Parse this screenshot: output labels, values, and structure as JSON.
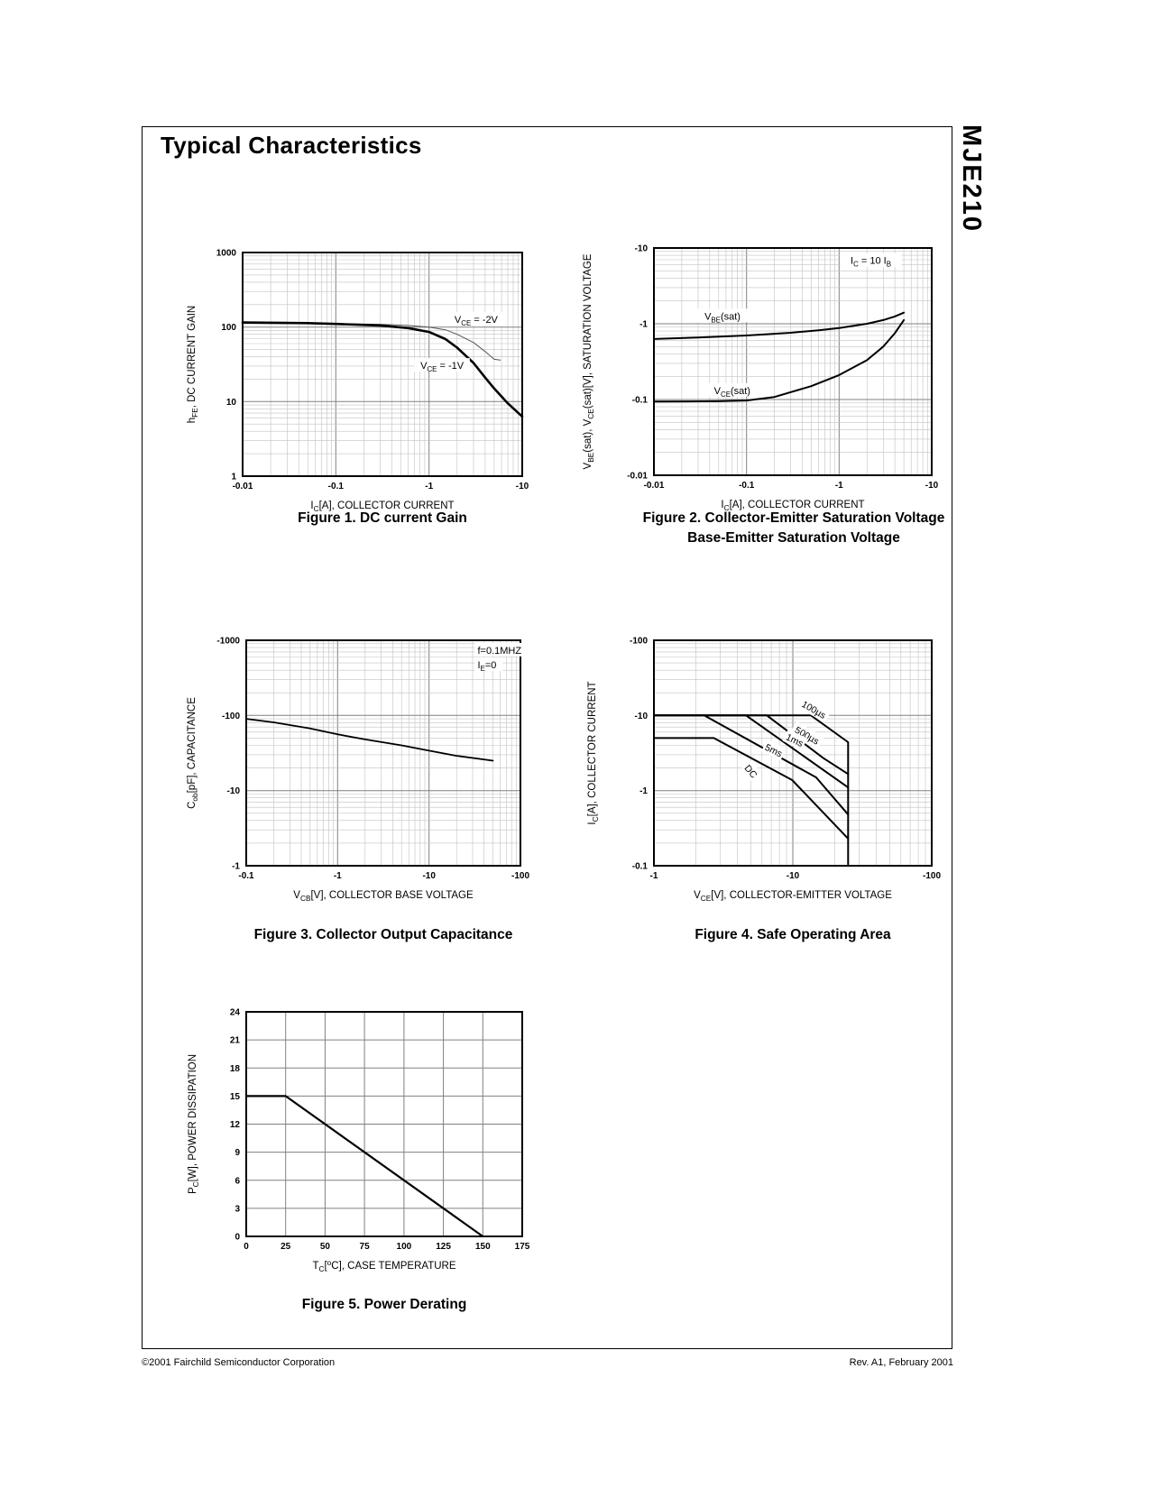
{
  "page": {
    "title": "Typical Characteristics",
    "part_number": "MJE210",
    "footer_left": "©2001 Fairchild Semiconductor Corporation",
    "footer_right": "Rev. A1, February 2001"
  },
  "chart_data": [
    {
      "type": "line",
      "caption": "Figure 1. DC current Gain",
      "xlabel": "I~C~[A], COLLECTOR CURRENT",
      "ylabel": "h~FE~, DC CURRENT GAIN",
      "x_scale": "log",
      "y_scale": "log",
      "x_range": [
        -0.01,
        -10
      ],
      "y_range": [
        1000,
        1
      ],
      "x_ticks": [
        {
          "v": -0.01,
          "label": "-0.01"
        },
        {
          "v": -0.1,
          "label": "-0.1"
        },
        {
          "v": -1,
          "label": "-1"
        },
        {
          "v": -10,
          "label": "-10"
        }
      ],
      "y_ticks": [
        {
          "v": 1000,
          "label": "1000"
        },
        {
          "v": 100,
          "label": "100"
        },
        {
          "v": 10,
          "label": "10"
        },
        {
          "v": 1,
          "label": "1"
        }
      ],
      "series": [
        {
          "name": "VCE = -2V",
          "width": 1,
          "color": "#555",
          "points": [
            [
              -0.01,
              112
            ],
            [
              -0.05,
              111
            ],
            [
              -0.1,
              111
            ],
            [
              -0.3,
              109
            ],
            [
              -0.6,
              105
            ],
            [
              -1,
              100
            ],
            [
              -1.5,
              92
            ],
            [
              -2,
              80
            ],
            [
              -3,
              62
            ],
            [
              -4,
              47
            ],
            [
              -5,
              37
            ],
            [
              -5.8,
              36
            ]
          ]
        },
        {
          "name": "VCE = -1V",
          "width": 2.6,
          "color": "#000",
          "points": [
            [
              -0.01,
              115
            ],
            [
              -0.05,
              113
            ],
            [
              -0.1,
              110
            ],
            [
              -0.3,
              105
            ],
            [
              -0.6,
              97
            ],
            [
              -1,
              86
            ],
            [
              -1.5,
              69
            ],
            [
              -2,
              53
            ],
            [
              -3,
              33
            ],
            [
              -4,
              21
            ],
            [
              -5,
              15
            ],
            [
              -7,
              9.5
            ],
            [
              -10,
              6.3
            ]
          ]
        }
      ],
      "annotations": [
        {
          "text": "V~CE~ = -2V",
          "x": -3.2,
          "y": 120
        },
        {
          "text": "V~CE~ = -1V",
          "x": -1.38,
          "y": 29
        }
      ]
    },
    {
      "type": "line",
      "caption": "Figure 2. Collector-Emitter Saturation Voltage",
      "caption2": "Base-Emitter Saturation Voltage",
      "xlabel": "I~C~[A], COLLECTOR CURRENT",
      "ylabel": "V~BE~(sat), V~CE~(sat)[V], SATURATION VOLTAGE",
      "x_scale": "log",
      "y_scale": "log",
      "x_range": [
        -0.01,
        -10
      ],
      "y_range": [
        -10,
        -0.01
      ],
      "x_ticks": [
        {
          "v": -0.01,
          "label": "-0.01"
        },
        {
          "v": -0.1,
          "label": "-0.1"
        },
        {
          "v": -1,
          "label": "-1"
        },
        {
          "v": -10,
          "label": "-10"
        }
      ],
      "y_ticks": [
        {
          "v": -10,
          "label": "-10"
        },
        {
          "v": -1,
          "label": "-1"
        },
        {
          "v": -0.1,
          "label": "-0.1"
        },
        {
          "v": -0.01,
          "label": "-0.01"
        }
      ],
      "series": [
        {
          "name": "VBE(sat)",
          "width": 2,
          "color": "#000",
          "points": [
            [
              -0.01,
              -0.63
            ],
            [
              -0.03,
              -0.66
            ],
            [
              -0.1,
              -0.7
            ],
            [
              -0.3,
              -0.76
            ],
            [
              -0.6,
              -0.82
            ],
            [
              -1,
              -0.88
            ],
            [
              -2,
              -1.0
            ],
            [
              -3,
              -1.12
            ],
            [
              -4,
              -1.25
            ],
            [
              -5,
              -1.4
            ]
          ]
        },
        {
          "name": "VCE(sat)",
          "width": 2,
          "color": "#000",
          "points": [
            [
              -0.01,
              -0.094
            ],
            [
              -0.05,
              -0.095
            ],
            [
              -0.1,
              -0.097
            ],
            [
              -0.2,
              -0.108
            ],
            [
              -0.5,
              -0.15
            ],
            [
              -1,
              -0.21
            ],
            [
              -2,
              -0.33
            ],
            [
              -3,
              -0.5
            ],
            [
              -4,
              -0.75
            ],
            [
              -5,
              -1.12
            ]
          ]
        }
      ],
      "annotations": [
        {
          "text": "I~C~ = 10 I~B~",
          "x": -2.2,
          "y": -6.5
        },
        {
          "text": "V~BE~(sat)",
          "x": -0.055,
          "y": -1.2
        },
        {
          "text": "V~CE~(sat)",
          "x": -0.07,
          "y": -0.125
        }
      ]
    },
    {
      "type": "line",
      "caption": "Figure 3. Collector Output Capacitance",
      "xlabel": "V~CB~[V], COLLECTOR BASE VOLTAGE",
      "ylabel": "C~ob~[pF], CAPACITANCE",
      "x_scale": "log",
      "y_scale": "log",
      "x_range": [
        -0.1,
        -100
      ],
      "y_range": [
        -1000,
        -1
      ],
      "x_ticks": [
        {
          "v": -0.1,
          "label": "-0.1"
        },
        {
          "v": -1,
          "label": "-1"
        },
        {
          "v": -10,
          "label": "-10"
        },
        {
          "v": -100,
          "label": "-100"
        }
      ],
      "y_ticks": [
        {
          "v": -1000,
          "label": "-1000"
        },
        {
          "v": -100,
          "label": "-100"
        },
        {
          "v": -10,
          "label": "-10"
        },
        {
          "v": -1,
          "label": "-1"
        }
      ],
      "series": [
        {
          "name": "Cob",
          "width": 1.8,
          "color": "#000",
          "points": [
            [
              -0.1,
              -90
            ],
            [
              -0.2,
              -81
            ],
            [
              -0.5,
              -67
            ],
            [
              -1,
              -56
            ],
            [
              -2,
              -48
            ],
            [
              -5,
              -40
            ],
            [
              -10,
              -34
            ],
            [
              -20,
              -29
            ],
            [
              -50,
              -25
            ]
          ]
        }
      ],
      "annotations": [
        {
          "text": "f=0.1MHZ",
          "x": -34,
          "y": -700,
          "anchor": "start"
        },
        {
          "text": "I~E~=0",
          "x": -34,
          "y": -450,
          "anchor": "start"
        }
      ]
    },
    {
      "type": "line",
      "caption": "Figure 4. Safe Operating Area",
      "xlabel": "V~CE~[V], COLLECTOR-EMITTER VOLTAGE",
      "ylabel": "I~C~[A], COLLECTOR CURRENT",
      "x_scale": "log",
      "y_scale": "log",
      "x_range": [
        -1,
        -100
      ],
      "y_range": [
        -100,
        -0.1
      ],
      "x_ticks": [
        {
          "v": -1,
          "label": "-1"
        },
        {
          "v": -10,
          "label": "-10"
        },
        {
          "v": -100,
          "label": "-100"
        }
      ],
      "y_ticks": [
        {
          "v": -100,
          "label": "-100"
        },
        {
          "v": -10,
          "label": "-10"
        },
        {
          "v": -1,
          "label": "-1"
        },
        {
          "v": -0.1,
          "label": "-0.1"
        }
      ],
      "series": [
        {
          "name": "100us",
          "width": 2,
          "color": "#000",
          "points": [
            [
              -1,
              -10
            ],
            [
              -13.5,
              -10
            ],
            [
              -25,
              -4.4
            ],
            [
              -25,
              -0.105
            ]
          ]
        },
        {
          "name": "500us",
          "width": 2,
          "color": "#000",
          "points": [
            [
              -1,
              -10
            ],
            [
              -6.5,
              -10
            ],
            [
              -16.6,
              -2.7
            ],
            [
              -25,
              -1.66
            ]
          ]
        },
        {
          "name": "1ms",
          "width": 2,
          "color": "#000",
          "points": [
            [
              -1,
              -10
            ],
            [
              -4.6,
              -10
            ],
            [
              -25,
              -1.1
            ]
          ]
        },
        {
          "name": "5ms",
          "width": 2,
          "color": "#000",
          "points": [
            [
              -1,
              -10
            ],
            [
              -2.3,
              -10
            ],
            [
              -14.7,
              -1.5
            ],
            [
              -25,
              -0.48
            ]
          ]
        },
        {
          "name": "DC",
          "width": 2,
          "color": "#000",
          "points": [
            [
              -1,
              -5
            ],
            [
              -2.7,
              -5
            ],
            [
              -9.9,
              -1.38
            ],
            [
              -25,
              -0.23
            ]
          ]
        }
      ],
      "annotations": [
        {
          "text": "100µs",
          "x": -14,
          "y": -11.5,
          "rotate": 30,
          "size": 10.5
        },
        {
          "text": "500µs",
          "x": -12.5,
          "y": -5.2,
          "rotate": 30,
          "size": 10.5
        },
        {
          "text": "1ms",
          "x": -10.2,
          "y": -4.5,
          "rotate": 26,
          "size": 10.5
        },
        {
          "text": "5ms",
          "x": -7.2,
          "y": -3.3,
          "rotate": 26,
          "size": 10.5
        },
        {
          "text": "DC",
          "x": -4.9,
          "y": -1.75,
          "rotate": 50,
          "size": 10.5
        }
      ]
    },
    {
      "type": "line",
      "caption": "Figure 5. Power Derating",
      "xlabel": "T~C~[^o^C], CASE TEMPERATURE",
      "ylabel": "P~C~[W], POWER DISSIPATION",
      "x_scale": "linear",
      "y_scale": "linear",
      "x_range": [
        0,
        175
      ],
      "y_range": [
        24,
        0
      ],
      "x_ticks": [
        {
          "v": 0,
          "label": "0"
        },
        {
          "v": 25,
          "label": "25"
        },
        {
          "v": 50,
          "label": "50"
        },
        {
          "v": 75,
          "label": "75"
        },
        {
          "v": 100,
          "label": "100"
        },
        {
          "v": 125,
          "label": "125"
        },
        {
          "v": 150,
          "label": "150"
        },
        {
          "v": 175,
          "label": "175"
        }
      ],
      "y_ticks": [
        {
          "v": 24,
          "label": "24"
        },
        {
          "v": 21,
          "label": "21"
        },
        {
          "v": 18,
          "label": "18"
        },
        {
          "v": 15,
          "label": "15"
        },
        {
          "v": 12,
          "label": "12"
        },
        {
          "v": 9,
          "label": "9"
        },
        {
          "v": 6,
          "label": "6"
        },
        {
          "v": 3,
          "label": "3"
        },
        {
          "v": 0,
          "label": "0"
        }
      ],
      "series": [
        {
          "name": "Power derating",
          "width": 2.2,
          "color": "#000",
          "points": [
            [
              0,
              15
            ],
            [
              25,
              15
            ],
            [
              150,
              0
            ]
          ]
        }
      ],
      "annotations": []
    }
  ]
}
